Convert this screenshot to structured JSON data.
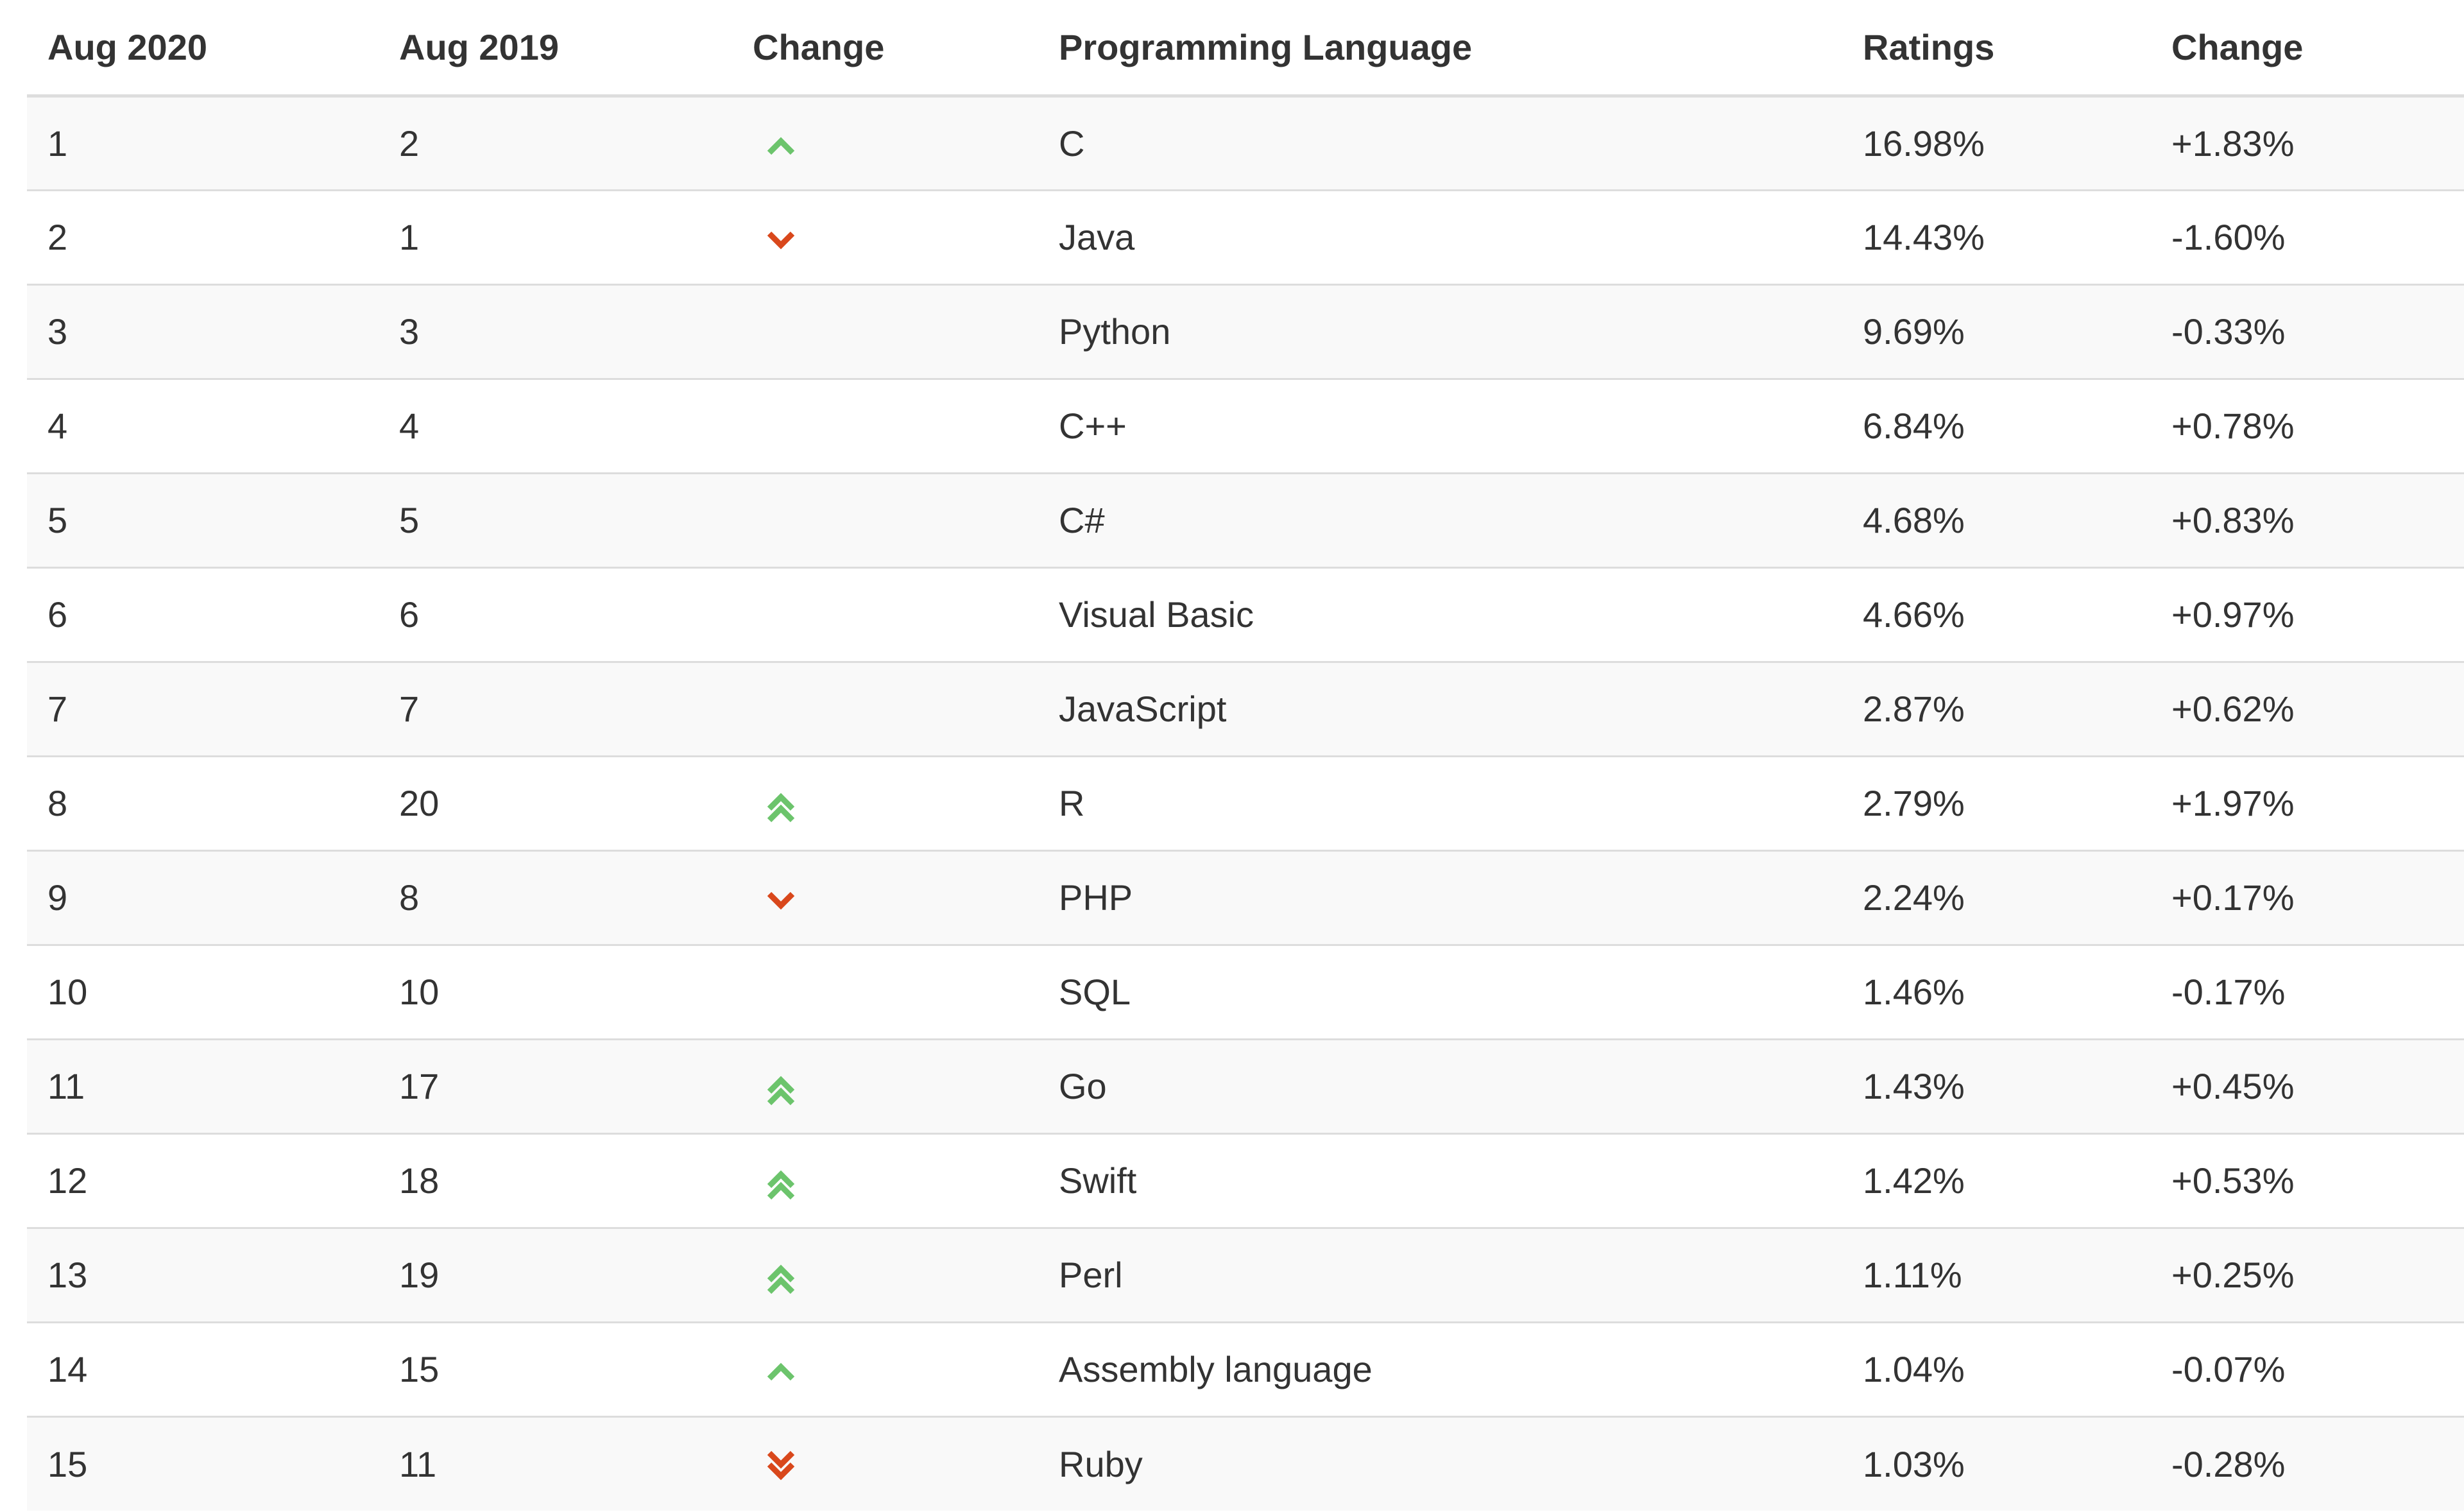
{
  "table": {
    "headers": [
      "Aug 2020",
      "Aug 2019",
      "Change",
      "Programming Language",
      "Ratings",
      "Change"
    ],
    "rows": [
      {
        "rank_2020": "1",
        "rank_2019": "2",
        "trend": "up",
        "language": "C",
        "rating": "16.98%",
        "change": "+1.83%"
      },
      {
        "rank_2020": "2",
        "rank_2019": "1",
        "trend": "down",
        "language": "Java",
        "rating": "14.43%",
        "change": "-1.60%"
      },
      {
        "rank_2020": "3",
        "rank_2019": "3",
        "trend": "none",
        "language": "Python",
        "rating": "9.69%",
        "change": "-0.33%"
      },
      {
        "rank_2020": "4",
        "rank_2019": "4",
        "trend": "none",
        "language": "C++",
        "rating": "6.84%",
        "change": "+0.78%"
      },
      {
        "rank_2020": "5",
        "rank_2019": "5",
        "trend": "none",
        "language": "C#",
        "rating": "4.68%",
        "change": "+0.83%"
      },
      {
        "rank_2020": "6",
        "rank_2019": "6",
        "trend": "none",
        "language": "Visual Basic",
        "rating": "4.66%",
        "change": "+0.97%"
      },
      {
        "rank_2020": "7",
        "rank_2019": "7",
        "trend": "none",
        "language": "JavaScript",
        "rating": "2.87%",
        "change": "+0.62%"
      },
      {
        "rank_2020": "8",
        "rank_2019": "20",
        "trend": "double-up",
        "language": "R",
        "rating": "2.79%",
        "change": "+1.97%"
      },
      {
        "rank_2020": "9",
        "rank_2019": "8",
        "trend": "down",
        "language": "PHP",
        "rating": "2.24%",
        "change": "+0.17%"
      },
      {
        "rank_2020": "10",
        "rank_2019": "10",
        "trend": "none",
        "language": "SQL",
        "rating": "1.46%",
        "change": "-0.17%"
      },
      {
        "rank_2020": "11",
        "rank_2019": "17",
        "trend": "double-up",
        "language": "Go",
        "rating": "1.43%",
        "change": "+0.45%"
      },
      {
        "rank_2020": "12",
        "rank_2019": "18",
        "trend": "double-up",
        "language": "Swift",
        "rating": "1.42%",
        "change": "+0.53%"
      },
      {
        "rank_2020": "13",
        "rank_2019": "19",
        "trend": "double-up",
        "language": "Perl",
        "rating": "1.11%",
        "change": "+0.25%"
      },
      {
        "rank_2020": "14",
        "rank_2019": "15",
        "trend": "up",
        "language": "Assembly language",
        "rating": "1.04%",
        "change": "-0.07%"
      },
      {
        "rank_2020": "15",
        "rank_2019": "11",
        "trend": "double-down",
        "language": "Ruby",
        "rating": "1.03%",
        "change": "-0.28%"
      }
    ]
  },
  "icons": {
    "up": "chevron-up-icon",
    "double-up": "double-chevron-up-icon",
    "down": "chevron-down-icon",
    "double-down": "double-chevron-down-icon"
  },
  "colors": {
    "up": "#6cc46c",
    "down": "#d9481c",
    "row_stripe": "#f9f9f9",
    "border": "#dddddd",
    "text": "#333333"
  }
}
